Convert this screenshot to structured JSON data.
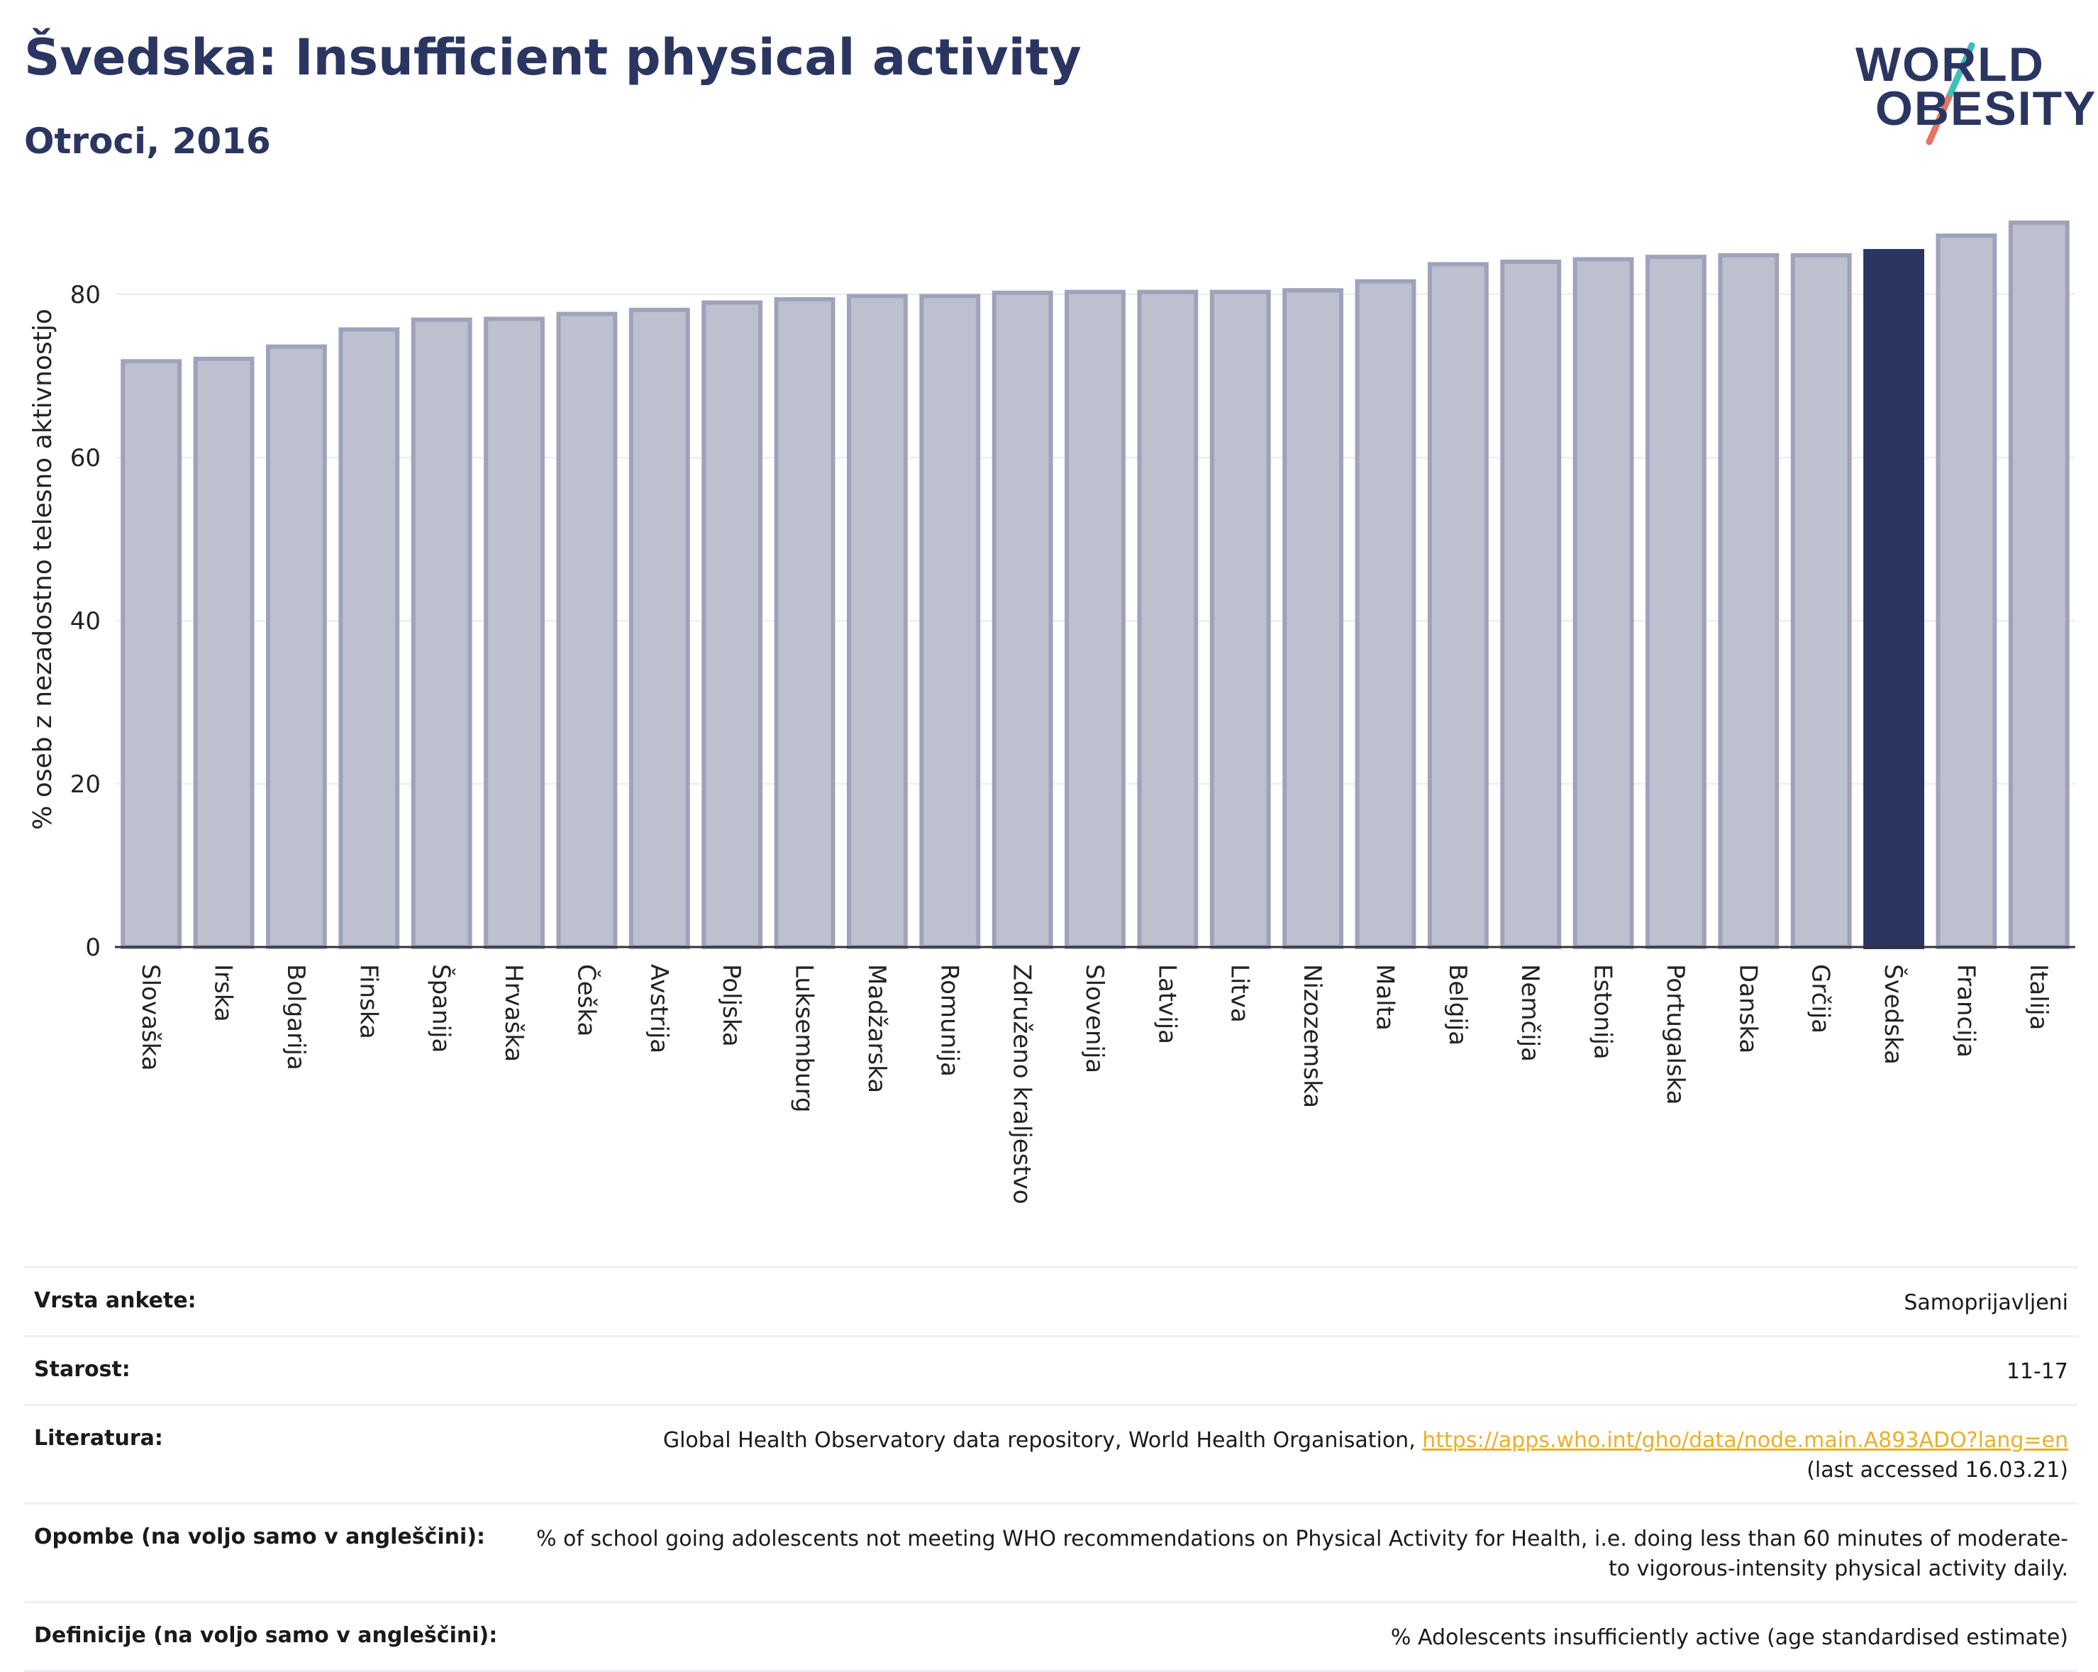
{
  "header": {
    "title": "Švedska: Insufficient physical activity",
    "subtitle": "Otroci, 2016"
  },
  "logo": {
    "line1": "WORLD",
    "line2": "OBESITY"
  },
  "colors": {
    "bar": "#bcc0cf",
    "bar_border": "#9ea3bb",
    "highlight": "#2b3561",
    "text": "#2b3561"
  },
  "chart_data": {
    "type": "bar",
    "title": "Švedska: Insufficient physical activity",
    "subtitle": "Otroci, 2016",
    "xlabel": "",
    "ylabel": "% oseb z nezadostno telesno aktivnostjo",
    "ylim": [
      0,
      90
    ],
    "yticks": [
      0,
      20,
      40,
      60,
      80
    ],
    "grid": true,
    "highlight": "Švedska",
    "categories": [
      "Slovaška",
      "Irska",
      "Bolgarija",
      "Finska",
      "Španija",
      "Hrvaška",
      "Češka",
      "Avstrija",
      "Poljska",
      "Luksemburg",
      "Madžarska",
      "Romunija",
      "Združeno kraljestvo",
      "Slovenija",
      "Latvija",
      "Litva",
      "Nizozemska",
      "Malta",
      "Belgija",
      "Nemčija",
      "Estonija",
      "Portugalska",
      "Danska",
      "Grčija",
      "Švedska",
      "Francija",
      "Italija"
    ],
    "values": [
      71.8,
      72.1,
      73.6,
      75.7,
      76.9,
      77.0,
      77.6,
      78.1,
      79.0,
      79.4,
      79.8,
      79.8,
      80.2,
      80.3,
      80.3,
      80.3,
      80.5,
      81.6,
      83.7,
      84.0,
      84.3,
      84.6,
      84.8,
      84.8,
      85.3,
      87.2,
      88.8
    ]
  },
  "meta": [
    {
      "label": "Vrsta ankete:",
      "value": "Samoprijavljeni"
    },
    {
      "label": "Starost:",
      "value": "11-17"
    },
    {
      "label": "Literatura:",
      "value": "Global Health Observatory data repository, World Health Organisation, ",
      "link": "https://apps.who.int/gho/data/node.main.A893ADO?lang=en",
      "value2": "(last accessed 16.03.21)"
    },
    {
      "label": "Opombe (na voljo samo v angleščini):",
      "value": "% of school going adolescents not meeting WHO recommendations on Physical Activity for Health, i.e. doing less than 60 minutes of moderate- to vigorous-intensity physical activity daily."
    },
    {
      "label": "Definicije (na voljo samo v angleščini):",
      "value": "% Adolescents insufficiently active (age standardised estimate)"
    }
  ]
}
